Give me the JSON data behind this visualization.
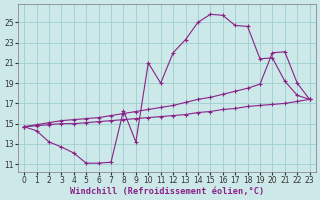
{
  "xlabel": "Windchill (Refroidissement éolien,°C)",
  "bg_color": "#cde8e8",
  "grid_color": "#9ecece",
  "line_color": "#882288",
  "xlim": [
    -0.5,
    23.5
  ],
  "ylim": [
    10.2,
    26.8
  ],
  "xticks": [
    0,
    1,
    2,
    3,
    4,
    5,
    6,
    7,
    8,
    9,
    10,
    11,
    12,
    13,
    14,
    15,
    16,
    17,
    18,
    19,
    20,
    21,
    22,
    23
  ],
  "yticks": [
    11,
    13,
    15,
    17,
    19,
    21,
    23,
    25
  ],
  "font_size": 5.5,
  "label_size": 6.2,
  "line1_x": [
    0,
    1,
    2,
    3,
    4,
    5,
    6,
    7,
    8,
    9,
    10,
    11,
    12,
    13,
    14,
    15,
    16,
    17,
    18,
    19,
    20,
    21,
    22,
    23
  ],
  "line1_y": [
    14.7,
    14.3,
    13.2,
    12.7,
    12.1,
    11.1,
    11.1,
    11.2,
    16.3,
    13.2,
    21.0,
    19.0,
    22.0,
    23.3,
    25.0,
    25.8,
    25.7,
    24.7,
    24.6,
    21.4,
    21.5,
    19.2,
    17.8,
    17.4
  ],
  "line2_x": [
    0,
    1,
    2,
    3,
    4,
    5,
    6,
    7,
    8,
    9,
    10,
    11,
    12,
    13,
    14,
    15,
    16,
    17,
    18,
    19,
    20,
    21,
    22,
    23
  ],
  "line2_y": [
    14.7,
    14.9,
    15.1,
    15.3,
    15.4,
    15.5,
    15.6,
    15.8,
    16.0,
    16.2,
    16.4,
    16.6,
    16.8,
    17.1,
    17.4,
    17.6,
    17.9,
    18.2,
    18.5,
    18.9,
    22.0,
    22.1,
    19.0,
    17.4
  ],
  "line3_x": [
    0,
    1,
    2,
    3,
    4,
    5,
    6,
    7,
    8,
    9,
    10,
    11,
    12,
    13,
    14,
    15,
    16,
    17,
    18,
    19,
    20,
    21,
    22,
    23
  ],
  "line3_y": [
    14.7,
    14.8,
    14.9,
    15.0,
    15.0,
    15.1,
    15.2,
    15.3,
    15.4,
    15.5,
    15.6,
    15.7,
    15.8,
    15.9,
    16.1,
    16.2,
    16.4,
    16.5,
    16.7,
    16.8,
    16.9,
    17.0,
    17.2,
    17.4
  ]
}
